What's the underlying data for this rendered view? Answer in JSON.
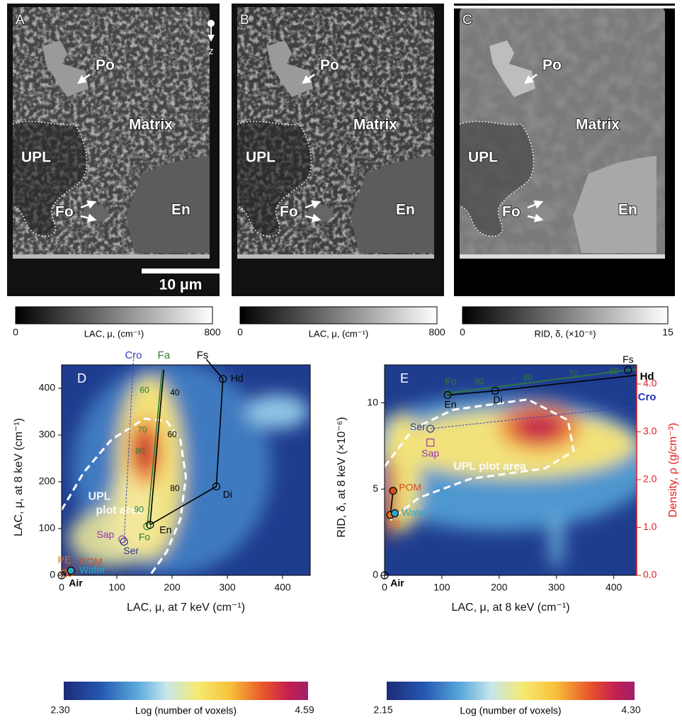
{
  "top_panels": [
    {
      "letter": "A",
      "labels": {
        "po": "Po",
        "matrix": "Matrix",
        "upl": "UPL",
        "fo": "Fo",
        "en": "En"
      },
      "scale_bar": "10 μm",
      "axis": "z",
      "colorbar": {
        "min": "0",
        "label": "LAC, μ, (cm⁻¹)",
        "max": "800"
      }
    },
    {
      "letter": "B",
      "labels": {
        "po": "Po",
        "matrix": "Matrix",
        "upl": "UPL",
        "fo": "Fo",
        "en": "En"
      },
      "colorbar": {
        "min": "0",
        "label": "LAC, μ, (cm⁻¹)",
        "max": "800"
      }
    },
    {
      "letter": "C",
      "labels": {
        "po": "Po",
        "matrix": "Matrix",
        "upl": "UPL",
        "fo": "Fo",
        "en": "En"
      },
      "colorbar": {
        "min": "0",
        "label": "RID, δ, (×10⁻⁶)",
        "max": "15"
      }
    }
  ],
  "plots": [
    {
      "letter": "D",
      "xlabel": "LAC, μ, at 7 keV (cm⁻¹)",
      "ylabel": "LAC, μ, at 8 keV (cm⁻¹)",
      "xlim": [
        0,
        450
      ],
      "ylim": [
        0,
        450
      ],
      "xticks": [
        0,
        100,
        200,
        300,
        400
      ],
      "yticks": [
        0,
        100,
        200,
        300,
        400
      ],
      "region_label": [
        "UPL",
        "plot area"
      ],
      "points": [
        {
          "label": "Air",
          "x": 0,
          "y": 0,
          "color": "#000000"
        },
        {
          "label": "PE",
          "x": 5,
          "y": 4,
          "color": "#e07020"
        },
        {
          "label": "POM",
          "x": 15,
          "y": 6,
          "color": "#d2501e"
        },
        {
          "label": "Water",
          "x": 17,
          "y": 10,
          "color": "#2aa8c8",
          "filled": true
        },
        {
          "label": "Sap",
          "x": 110,
          "y": 77,
          "color": "#9933bb"
        },
        {
          "label": "Ser",
          "x": 113,
          "y": 72,
          "color": "#2b3590"
        },
        {
          "label": "Fo",
          "x": 155,
          "y": 105,
          "color": "#2e7d32"
        },
        {
          "label": "En",
          "x": 160,
          "y": 108,
          "color": "#000000"
        },
        {
          "label": "Di",
          "x": 280,
          "y": 190,
          "color": "#000000"
        },
        {
          "label": "Hd",
          "x": 292,
          "y": 420,
          "color": "#000000"
        }
      ],
      "lines": [
        {
          "path": [
            [
              155,
              105
            ],
            [
              182,
              440
            ]
          ],
          "color": "#2e7d32"
        },
        {
          "path": [
            [
              160,
              108
            ],
            [
              185,
              440
            ]
          ],
          "color": "#000000"
        },
        {
          "path": [
            [
              160,
              108
            ],
            [
              280,
              190
            ],
            [
              292,
              420
            ],
            [
              262,
              462
            ]
          ],
          "color": "#000000"
        },
        {
          "path": [
            [
              113,
              72
            ],
            [
              130,
              462
            ]
          ],
          "color": "#3344bb",
          "dashed": true
        }
      ],
      "labels": [
        {
          "text": "Cro",
          "x": 130,
          "y": 470,
          "color": "#3344bb"
        },
        {
          "text": "Fa",
          "x": 185,
          "y": 470,
          "color": "#2e7d32"
        },
        {
          "text": "Fs",
          "x": 255,
          "y": 470,
          "color": "#000000"
        },
        {
          "text": "90",
          "x": 140,
          "y": 140,
          "color": "#2e7d32"
        },
        {
          "text": "80",
          "x": 142,
          "y": 265,
          "color": "#2e7d32"
        },
        {
          "text": "70",
          "x": 146,
          "y": 310,
          "color": "#2e7d32"
        },
        {
          "text": "60",
          "x": 150,
          "y": 395,
          "color": "#2e7d32"
        },
        {
          "text": "80",
          "x": 205,
          "y": 185,
          "color": "#000000"
        },
        {
          "text": "60",
          "x": 200,
          "y": 300,
          "color": "#000000"
        },
        {
          "text": "40",
          "x": 205,
          "y": 390,
          "color": "#000000"
        }
      ],
      "colorbar": {
        "min": "2.30",
        "label": "Log (number of voxels)",
        "max": "4.59"
      }
    },
    {
      "letter": "E",
      "xlabel": "LAC, μ, at 8 keV (cm⁻¹)",
      "ylabel": "RID, δ, at 8 keV (×10⁻⁶)",
      "y2label": "Density, ρ (g/cm⁻³)",
      "xlim": [
        0,
        440
      ],
      "ylim": [
        0,
        12.2
      ],
      "xticks": [
        0,
        100,
        200,
        300,
        400
      ],
      "yticks": [
        0,
        5,
        10
      ],
      "y2lim": [
        0,
        4.4
      ],
      "y2ticks": [
        {
          "value": 0,
          "label": "0.0"
        },
        {
          "value": 1,
          "label": "1.0"
        },
        {
          "value": 2,
          "label": "2.0"
        },
        {
          "value": 3,
          "label": "3.0"
        },
        {
          "value": 4,
          "label": "4.0"
        }
      ],
      "y2color": "#e02020",
      "region_label": [
        "UPL plot area"
      ],
      "points": [
        {
          "label": "Air",
          "x": 0,
          "y": 0,
          "color": "#000000"
        },
        {
          "label": "PE",
          "x": 10,
          "y": 3.5,
          "color": "#e07020",
          "filled": true
        },
        {
          "label": "Water",
          "x": 18,
          "y": 3.6,
          "color": "#2aa8c8",
          "filled": true
        },
        {
          "label": "POM",
          "x": 15,
          "y": 4.9,
          "color": "#d2501e",
          "filled": true
        },
        {
          "label": "Sap",
          "x": 80,
          "y": 7.7,
          "color": "#9933bb",
          "marker": "square"
        },
        {
          "label": "Ser",
          "x": 80,
          "y": 8.5,
          "color": "#2b3590"
        },
        {
          "label": "Fo",
          "x": 108,
          "y": 10.55,
          "color": "#2e7d32"
        },
        {
          "label": "En",
          "x": 110,
          "y": 10.45,
          "color": "#000000"
        },
        {
          "label": "Di",
          "x": 193,
          "y": 10.7,
          "color": "#000000"
        },
        {
          "label": "Fs",
          "x": 425,
          "y": 11.9,
          "color": "#000000"
        }
      ],
      "lines": [
        {
          "path": [
            [
              10,
              3.5
            ],
            [
              15,
              4.9
            ]
          ],
          "color": "#000000"
        },
        {
          "path": [
            [
              108,
              10.55
            ],
            [
              425,
              11.9
            ],
            [
              440,
              11.95
            ]
          ],
          "color": "#2e7d32"
        },
        {
          "path": [
            [
              110,
              10.45
            ],
            [
              193,
              10.7
            ],
            [
              440,
              11.6
            ]
          ],
          "color": "#000000"
        },
        {
          "path": [
            [
              80,
              8.5
            ],
            [
              440,
              9.8
            ]
          ],
          "color": "#3344bb",
          "dashed": true
        }
      ],
      "labels": [
        {
          "text": "Hd",
          "x": 458,
          "y": 11.5,
          "color": "#000000"
        },
        {
          "text": "Cro",
          "x": 458,
          "y": 10.3,
          "color": "#2233bb"
        },
        {
          "text": "90",
          "x": 165,
          "y": 11.2,
          "color": "#2e7d32"
        },
        {
          "text": "80",
          "x": 250,
          "y": 11.45,
          "color": "#2e7d32"
        },
        {
          "text": "70",
          "x": 330,
          "y": 11.65,
          "color": "#2e7d32"
        },
        {
          "text": "60",
          "x": 400,
          "y": 11.8,
          "color": "#2e7d32"
        }
      ],
      "colorbar": {
        "min": "2.15",
        "label": "Log (number of voxels)",
        "max": "4.30"
      }
    }
  ]
}
